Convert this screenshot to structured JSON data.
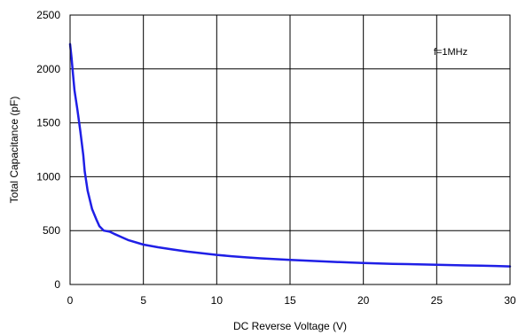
{
  "chart_data": {
    "type": "line",
    "title": "",
    "xlabel": "DC Reverse Voltage (V)",
    "ylabel": "Total Capacitance (pF)",
    "xlim": [
      0,
      30
    ],
    "ylim": [
      0,
      2500
    ],
    "x_ticks": [
      0,
      5,
      10,
      15,
      20,
      25,
      30
    ],
    "y_ticks": [
      0,
      500,
      1000,
      1500,
      2000,
      2500
    ],
    "x_tick_labels": [
      "0",
      "5",
      "10",
      "15",
      "20",
      "25",
      "30"
    ],
    "y_tick_labels": [
      "0",
      "500",
      "1000",
      "1500",
      "2000",
      "2500"
    ],
    "grid": true,
    "annotation": "f=1MHz",
    "series": [
      {
        "color": "#1f1fe6",
        "x": [
          0,
          0.1,
          0.2,
          0.3,
          0.5,
          0.7,
          0.9,
          1.0,
          1.2,
          1.5,
          1.8,
          2.0,
          2.3,
          2.7,
          3.0,
          3.5,
          4.0,
          5.0,
          6.0,
          7.0,
          8.0,
          9.0,
          10.0,
          11.0,
          12.0,
          13.0,
          14.0,
          15.0,
          16.0,
          17.0,
          18.0,
          19.0,
          20.0,
          21.0,
          22.0,
          23.0,
          24.0,
          25.0,
          26.0,
          27.0,
          28.0,
          29.0,
          30.0
        ],
        "y": [
          2230,
          2100,
          1950,
          1800,
          1620,
          1420,
          1200,
          1050,
          870,
          700,
          600,
          540,
          500,
          490,
          470,
          440,
          410,
          370,
          345,
          325,
          305,
          290,
          275,
          262,
          252,
          243,
          235,
          228,
          222,
          216,
          210,
          205,
          200,
          196,
          192,
          189,
          186,
          183,
          180,
          177,
          175,
          172,
          168
        ]
      }
    ]
  }
}
